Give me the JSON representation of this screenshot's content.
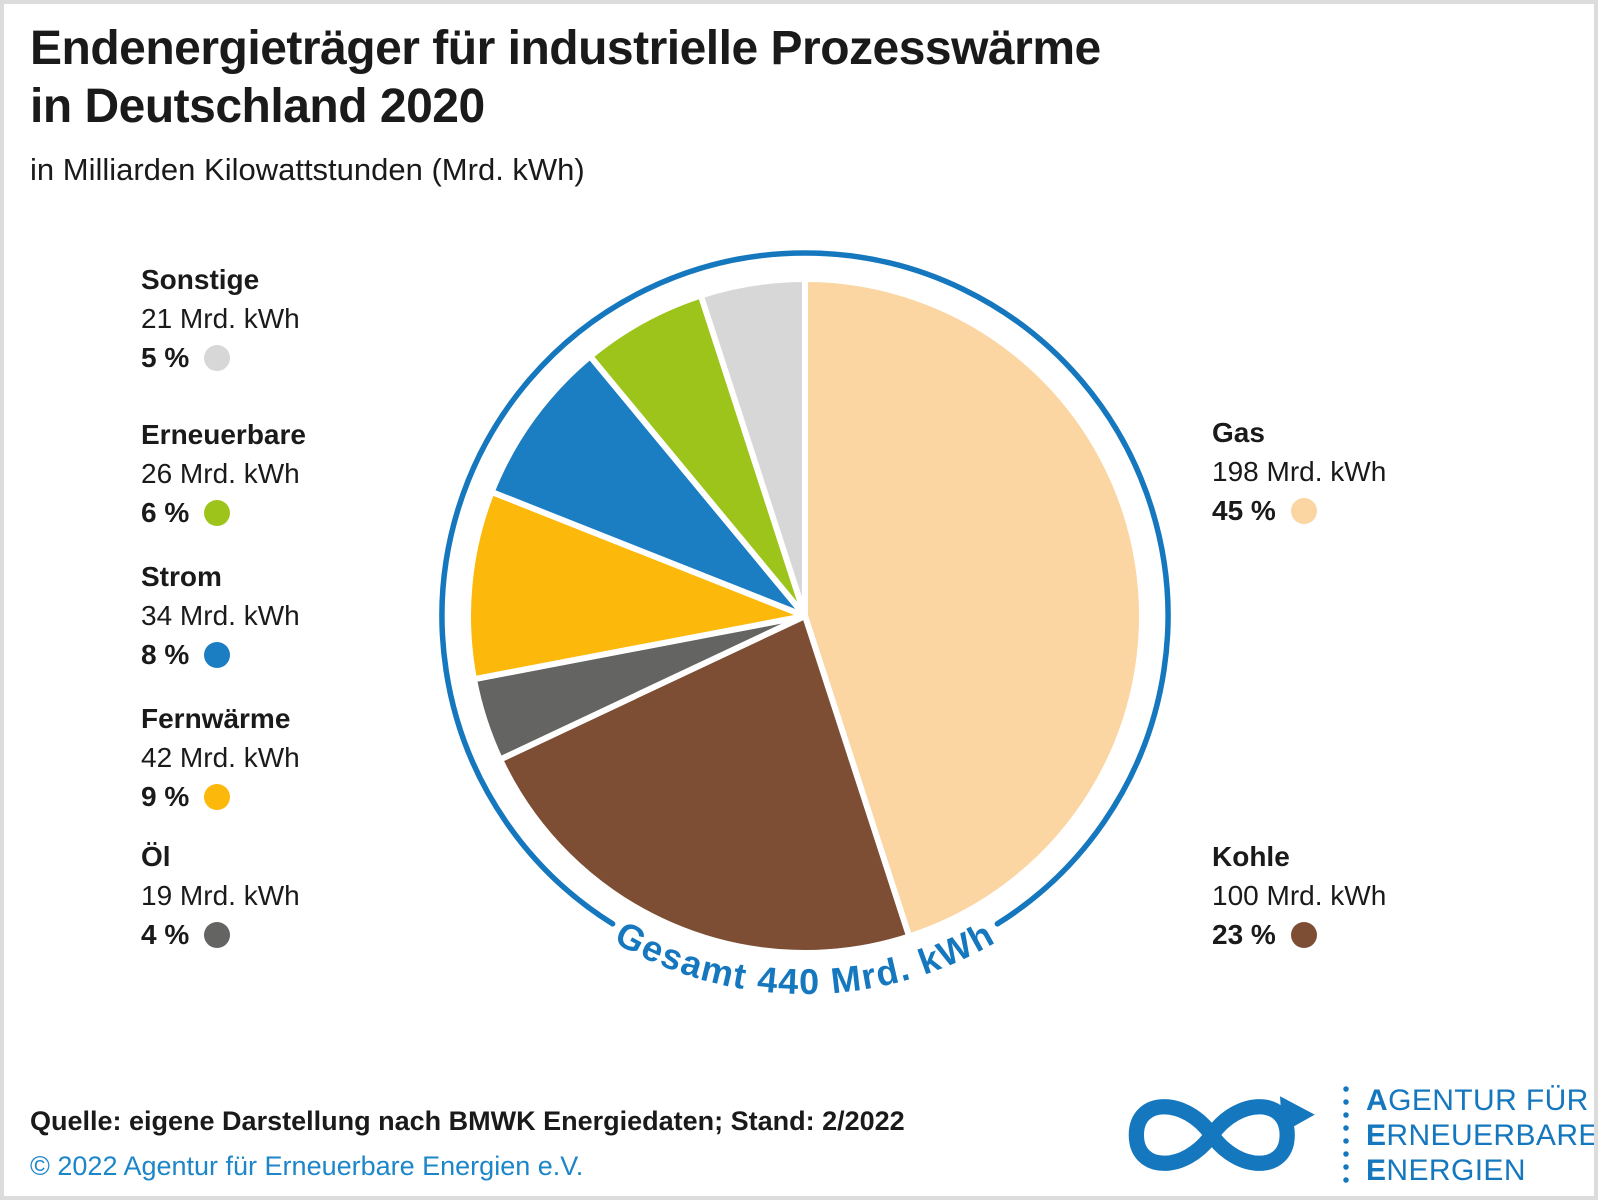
{
  "header": {
    "title": "Endenergieträger für industrielle Prozesswärme\nin Deutschland 2020",
    "subtitle": "in Milliarden Kilowattstunden (Mrd. kWh)"
  },
  "chart_data": {
    "type": "pie",
    "title": "Endenergieträger für industrielle Prozesswärme in Deutschland 2020",
    "unit": "Mrd. kWh",
    "total_value": 440,
    "total_label": "Gesamt 440 Mrd. kWh",
    "start_angle": "12 o'clock",
    "direction": "clockwise",
    "legend_position": "left and right of pie",
    "slices": [
      {
        "label": "Gas",
        "value": 198,
        "value_label": "198 Mrd. kWh",
        "percent": 45,
        "percent_label": "45 %",
        "color": "#fbd5a2"
      },
      {
        "label": "Kohle",
        "value": 100,
        "value_label": "100 Mrd. kWh",
        "percent": 23,
        "percent_label": "23 %",
        "color": "#7d4e33"
      },
      {
        "label": "Öl",
        "value": 19,
        "value_label": "19 Mrd. kWh",
        "percent": 4,
        "percent_label": "4 %",
        "color": "#646463"
      },
      {
        "label": "Fernwärme",
        "value": 42,
        "value_label": "42 Mrd. kWh",
        "percent": 9,
        "percent_label": "9 %",
        "color": "#fcb80b"
      },
      {
        "label": "Strom",
        "value": 34,
        "value_label": "34 Mrd. kWh",
        "percent": 8,
        "percent_label": "8 %",
        "color": "#1b7ec2"
      },
      {
        "label": "Erneuerbare",
        "value": 26,
        "value_label": "26 Mrd. kWh",
        "percent": 6,
        "percent_label": "6 %",
        "color": "#9dc41b"
      },
      {
        "label": "Sonstige",
        "value": 21,
        "value_label": "21 Mrd. kWh",
        "percent": 5,
        "percent_label": "5 %",
        "color": "#d7d7d7"
      }
    ]
  },
  "footer": {
    "source": "Quelle: eigene Darstellung nach BMWK Energiedaten; Stand: 2/2022",
    "copyright": "© 2022 Agentur für Erneuerbare Energien e.V."
  },
  "logo": {
    "lines": [
      {
        "lead": "A",
        "rest": "GENTUR FÜR"
      },
      {
        "lead": "E",
        "rest": "RNEUERBARE"
      },
      {
        "lead": "E",
        "rest": "NERGIEN"
      }
    ]
  },
  "colors": {
    "accent_blue": "#1577be",
    "copyright_blue": "#1d86c9",
    "text": "#1a1a1a",
    "border_gray": "#dcdcdc"
  }
}
